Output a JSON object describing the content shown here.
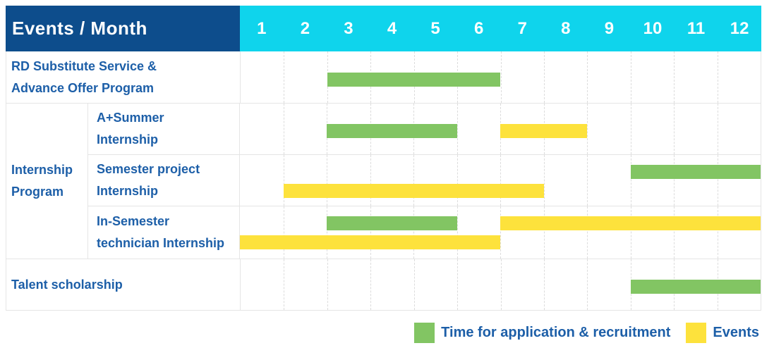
{
  "colors": {
    "header_bg": "#0d4d8c",
    "month_header_bg": "#0fd4ec",
    "green": "#82c563",
    "yellow": "#fde23c",
    "label_text": "#1d5fa8",
    "header_text": "#ffffff",
    "row_border": "#e5e5e5",
    "grid_line": "#dcdcdc"
  },
  "table": {
    "header": {
      "title": "Events / Month",
      "months": [
        "1",
        "2",
        "3",
        "4",
        "5",
        "6",
        "7",
        "8",
        "9",
        "10",
        "11",
        "12"
      ]
    },
    "rows": [
      {
        "id": "rd-substitute",
        "label": "RD Substitute Service &\nAdvance Offer Program",
        "bars": [
          {
            "color": "green",
            "start_month": 3,
            "end_month": 6,
            "line": "middle"
          }
        ]
      },
      {
        "id": "internship-program",
        "group_label": "Internship\nProgram",
        "children": [
          {
            "id": "a-plus-summer-internship",
            "label": "A+Summer\nInternship",
            "bars": [
              {
                "color": "green",
                "start_month": 3,
                "end_month": 5,
                "line": "middle"
              },
              {
                "color": "yellow",
                "start_month": 7,
                "end_month": 8,
                "line": "middle"
              }
            ]
          },
          {
            "id": "semester-project-internship",
            "label": "Semester project\nInternship",
            "bars": [
              {
                "color": "green",
                "start_month": 10,
                "end_month": 12,
                "line": "upper"
              },
              {
                "color": "yellow",
                "start_month": 2,
                "end_month": 7,
                "line": "lower"
              }
            ]
          },
          {
            "id": "in-semester-technician-internship",
            "label": "In-Semester\ntechnician Internship",
            "bars": [
              {
                "color": "green",
                "start_month": 3,
                "end_month": 5,
                "line": "upper"
              },
              {
                "color": "yellow",
                "start_month": 7,
                "end_month": 12,
                "line": "upper"
              },
              {
                "color": "yellow",
                "start_month": 1,
                "end_month": 6,
                "line": "lower"
              }
            ]
          }
        ]
      },
      {
        "id": "talent-scholarship",
        "label": "Talent scholarship",
        "bars": [
          {
            "color": "green",
            "start_month": 10,
            "end_month": 12,
            "line": "middle"
          }
        ]
      }
    ]
  },
  "legend": {
    "items": [
      {
        "color": "green",
        "label": "Time for application & recruitment"
      },
      {
        "color": "yellow",
        "label": "Events"
      }
    ]
  },
  "chart_data": {
    "type": "bar",
    "subtype": "gantt",
    "title": "Events / Month",
    "x_axis": {
      "label": "Month",
      "ticks": [
        1,
        2,
        3,
        4,
        5,
        6,
        7,
        8,
        9,
        10,
        11,
        12
      ],
      "range": [
        1,
        12
      ]
    },
    "grid": "dashed-vertical-month-lines",
    "legend_position": "bottom-right",
    "series_meaning": {
      "green": "Time for application & recruitment",
      "yellow": "Events"
    },
    "rows": [
      {
        "category": "RD Substitute Service & Advance Offer Program",
        "bars": [
          {
            "series": "Time for application & recruitment",
            "start_month": 3,
            "end_month": 6
          }
        ]
      },
      {
        "category": "Internship Program - A+Summer Internship",
        "bars": [
          {
            "series": "Time for application & recruitment",
            "start_month": 3,
            "end_month": 5
          },
          {
            "series": "Events",
            "start_month": 7,
            "end_month": 8
          }
        ]
      },
      {
        "category": "Internship Program - Semester project Internship",
        "bars": [
          {
            "series": "Time for application & recruitment",
            "start_month": 10,
            "end_month": 12
          },
          {
            "series": "Events",
            "start_month": 2,
            "end_month": 7
          }
        ]
      },
      {
        "category": "Internship Program - In-Semester technician Internship",
        "bars": [
          {
            "series": "Time for application & recruitment",
            "start_month": 3,
            "end_month": 5
          },
          {
            "series": "Events",
            "start_month": 7,
            "end_month": 12
          },
          {
            "series": "Events",
            "start_month": 1,
            "end_month": 6
          }
        ]
      },
      {
        "category": "Talent scholarship",
        "bars": [
          {
            "series": "Time for application & recruitment",
            "start_month": 10,
            "end_month": 12
          }
        ]
      }
    ]
  }
}
